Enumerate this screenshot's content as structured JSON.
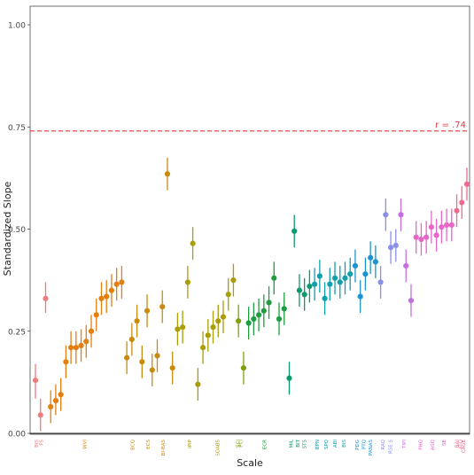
{
  "chart_data": {
    "type": "scatter",
    "xlabel": "Scale",
    "ylabel": "Standardized Slope",
    "ylim": [
      0,
      1.0
    ],
    "yticks": [
      "0.00",
      "0.25",
      "0.50",
      "0.75",
      "1.00"
    ],
    "grid": false,
    "reference_line": {
      "y": 0.74,
      "label": "r = .74",
      "style": "dashed",
      "color": "#e23b3b"
    },
    "groups": [
      {
        "color": "#f07b7b",
        "tick_labels": [
          "BIS",
          "FS"
        ],
        "points": [
          {
            "y": 0.13,
            "lo": 0.085,
            "hi": 0.17
          },
          {
            "y": 0.045,
            "lo": 0.005,
            "hi": 0.085
          },
          {
            "y": 0.33,
            "lo": 0.295,
            "hi": 0.37
          }
        ]
      },
      {
        "color": "#e37e0f",
        "tick_labels": [
          "WVI"
        ],
        "points": [
          {
            "y": 0.065,
            "lo": 0.025,
            "hi": 0.105
          },
          {
            "y": 0.08,
            "lo": 0.045,
            "hi": 0.12
          },
          {
            "y": 0.095,
            "lo": 0.055,
            "hi": 0.135
          },
          {
            "y": 0.175,
            "lo": 0.135,
            "hi": 0.215
          },
          {
            "y": 0.21,
            "lo": 0.17,
            "hi": 0.25
          },
          {
            "y": 0.21,
            "lo": 0.17,
            "hi": 0.25
          },
          {
            "y": 0.215,
            "lo": 0.175,
            "hi": 0.255
          },
          {
            "y": 0.225,
            "lo": 0.185,
            "hi": 0.265
          },
          {
            "y": 0.25,
            "lo": 0.21,
            "hi": 0.29
          },
          {
            "y": 0.29,
            "lo": 0.25,
            "hi": 0.33
          },
          {
            "y": 0.33,
            "lo": 0.29,
            "hi": 0.37
          },
          {
            "y": 0.335,
            "lo": 0.295,
            "hi": 0.375
          },
          {
            "y": 0.35,
            "lo": 0.31,
            "hi": 0.39
          },
          {
            "y": 0.365,
            "lo": 0.325,
            "hi": 0.405
          },
          {
            "y": 0.37,
            "lo": 0.33,
            "hi": 0.41
          }
        ]
      },
      {
        "color": "#c98a10",
        "tick_labels": [
          "BCQ",
          "ECS",
          "BI-BAS"
        ],
        "points": [
          {
            "y": 0.185,
            "lo": 0.145,
            "hi": 0.225
          },
          {
            "y": 0.23,
            "lo": 0.19,
            "hi": 0.27
          },
          {
            "y": 0.275,
            "lo": 0.235,
            "hi": 0.315
          },
          {
            "y": 0.175,
            "lo": 0.135,
            "hi": 0.215
          },
          {
            "y": 0.3,
            "lo": 0.26,
            "hi": 0.34
          },
          {
            "y": 0.155,
            "lo": 0.115,
            "hi": 0.195
          },
          {
            "y": 0.19,
            "lo": 0.15,
            "hi": 0.23
          },
          {
            "y": 0.31,
            "lo": 0.27,
            "hi": 0.35
          },
          {
            "y": 0.635,
            "lo": 0.595,
            "hi": 0.675
          },
          {
            "y": 0.16,
            "lo": 0.12,
            "hi": 0.2
          }
        ]
      },
      {
        "color": "#a99d08",
        "tick_labels": [
          "IPIP",
          "SOABS"
        ],
        "points": [
          {
            "y": 0.255,
            "lo": 0.215,
            "hi": 0.295
          },
          {
            "y": 0.26,
            "lo": 0.22,
            "hi": 0.3
          },
          {
            "y": 0.37,
            "lo": 0.33,
            "hi": 0.41
          },
          {
            "y": 0.465,
            "lo": 0.425,
            "hi": 0.505
          },
          {
            "y": 0.12,
            "lo": 0.08,
            "hi": 0.16
          },
          {
            "y": 0.21,
            "lo": 0.17,
            "hi": 0.25
          },
          {
            "y": 0.24,
            "lo": 0.2,
            "hi": 0.28
          },
          {
            "y": 0.26,
            "lo": 0.22,
            "hi": 0.3
          },
          {
            "y": 0.275,
            "lo": 0.235,
            "hi": 0.315
          },
          {
            "y": 0.285,
            "lo": 0.245,
            "hi": 0.325
          },
          {
            "y": 0.34,
            "lo": 0.3,
            "hi": 0.38
          },
          {
            "y": 0.375,
            "lo": 0.335,
            "hi": 0.415
          }
        ]
      },
      {
        "color": "#7ea20f",
        "tick_labels": [
          "SCI",
          "PCI"
        ],
        "points": [
          {
            "y": 0.275,
            "lo": 0.235,
            "hi": 0.315
          },
          {
            "y": 0.16,
            "lo": 0.12,
            "hi": 0.2
          }
        ]
      },
      {
        "color": "#1e9c3f",
        "tick_labels": [
          "ECR"
        ],
        "points": [
          {
            "y": 0.27,
            "lo": 0.23,
            "hi": 0.31
          },
          {
            "y": 0.28,
            "lo": 0.24,
            "hi": 0.32
          },
          {
            "y": 0.29,
            "lo": 0.25,
            "hi": 0.33
          },
          {
            "y": 0.3,
            "lo": 0.26,
            "hi": 0.34
          },
          {
            "y": 0.32,
            "lo": 0.28,
            "hi": 0.36
          },
          {
            "y": 0.38,
            "lo": 0.34,
            "hi": 0.42
          },
          {
            "y": 0.28,
            "lo": 0.24,
            "hi": 0.32
          },
          {
            "y": 0.305,
            "lo": 0.265,
            "hi": 0.345
          }
        ]
      },
      {
        "color": "#0b9a6e",
        "tick_labels": [
          "MIL",
          "BIT",
          "STS"
        ],
        "points": [
          {
            "y": 0.135,
            "lo": 0.095,
            "hi": 0.175
          },
          {
            "y": 0.495,
            "lo": 0.455,
            "hi": 0.535
          },
          {
            "y": 0.35,
            "lo": 0.31,
            "hi": 0.39
          },
          {
            "y": 0.34,
            "lo": 0.3,
            "hi": 0.38
          },
          {
            "y": 0.36,
            "lo": 0.32,
            "hi": 0.4
          }
        ]
      },
      {
        "color": "#0f9fad",
        "tick_labels": [
          "BPN",
          "SPQ",
          "ABI",
          "BIS"
        ],
        "points": [
          {
            "y": 0.365,
            "lo": 0.325,
            "hi": 0.405
          },
          {
            "y": 0.385,
            "lo": 0.345,
            "hi": 0.425
          },
          {
            "y": 0.33,
            "lo": 0.29,
            "hi": 0.37
          },
          {
            "y": 0.365,
            "lo": 0.325,
            "hi": 0.405
          },
          {
            "y": 0.38,
            "lo": 0.34,
            "hi": 0.42
          },
          {
            "y": 0.37,
            "lo": 0.33,
            "hi": 0.41
          },
          {
            "y": 0.38,
            "lo": 0.34,
            "hi": 0.42
          },
          {
            "y": 0.39,
            "lo": 0.35,
            "hi": 0.43
          }
        ]
      },
      {
        "color": "#1d93d1",
        "tick_labels": [
          "PDG",
          "PTQ",
          "PANAS"
        ],
        "points": [
          {
            "y": 0.41,
            "lo": 0.37,
            "hi": 0.45
          },
          {
            "y": 0.335,
            "lo": 0.295,
            "hi": 0.375
          },
          {
            "y": 0.39,
            "lo": 0.35,
            "hi": 0.43
          },
          {
            "y": 0.43,
            "lo": 0.39,
            "hi": 0.47
          },
          {
            "y": 0.42,
            "lo": 0.38,
            "hi": 0.46
          }
        ]
      },
      {
        "color": "#8a8fe8",
        "tick_labels": [
          "RAQ",
          "RSE S"
        ],
        "points": [
          {
            "y": 0.37,
            "lo": 0.33,
            "hi": 0.41
          },
          {
            "y": 0.535,
            "lo": 0.495,
            "hi": 0.575
          },
          {
            "y": 0.455,
            "lo": 0.415,
            "hi": 0.495
          },
          {
            "y": 0.46,
            "lo": 0.42,
            "hi": 0.5
          }
        ]
      },
      {
        "color": "#c46fe0",
        "tick_labels": [
          "TIPI"
        ],
        "points": [
          {
            "y": 0.535,
            "lo": 0.495,
            "hi": 0.575
          },
          {
            "y": 0.41,
            "lo": 0.37,
            "hi": 0.45
          },
          {
            "y": 0.325,
            "lo": 0.285,
            "hi": 0.365
          }
        ]
      },
      {
        "color": "#e766c8",
        "tick_labels": [
          "PHQ",
          "AGQ",
          "SE"
        ],
        "points": [
          {
            "y": 0.48,
            "lo": 0.44,
            "hi": 0.52
          },
          {
            "y": 0.475,
            "lo": 0.435,
            "hi": 0.515
          },
          {
            "y": 0.48,
            "lo": 0.44,
            "hi": 0.52
          },
          {
            "y": 0.505,
            "lo": 0.465,
            "hi": 0.545
          },
          {
            "y": 0.485,
            "lo": 0.445,
            "hi": 0.525
          },
          {
            "y": 0.505,
            "lo": 0.465,
            "hi": 0.545
          },
          {
            "y": 0.51,
            "lo": 0.47,
            "hi": 0.55
          },
          {
            "y": 0.51,
            "lo": 0.47,
            "hi": 0.55
          }
        ]
      },
      {
        "color": "#f06a8e",
        "tick_labels": [
          "BAI",
          "ATQ",
          "CAGE"
        ],
        "points": [
          {
            "y": 0.545,
            "lo": 0.505,
            "hi": 0.585
          },
          {
            "y": 0.565,
            "lo": 0.525,
            "hi": 0.605
          },
          {
            "y": 0.61,
            "lo": 0.57,
            "hi": 0.65
          }
        ]
      }
    ]
  }
}
